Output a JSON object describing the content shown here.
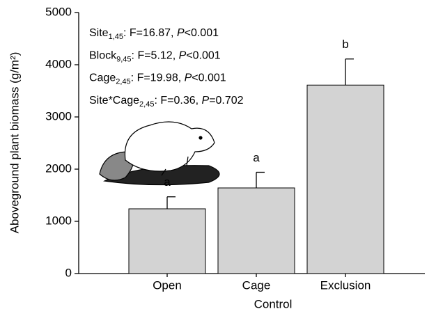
{
  "chart_data": {
    "type": "bar",
    "x_label": "Control",
    "y_label": "Aboveground plant biomass (g/m²)",
    "categories": [
      "Open",
      "Cage",
      "Exclusion"
    ],
    "values": [
      1240,
      1640,
      3610
    ],
    "errors": [
      230,
      300,
      500
    ],
    "letters": [
      "a",
      "a",
      "b"
    ],
    "color": "#d3d3d3",
    "ylim": [
      0,
      5000
    ],
    "yticks": [
      0,
      1000,
      2000,
      3000,
      4000,
      5000
    ],
    "annotations": [
      {
        "term": "Site",
        "df": "1,45",
        "text": ": F=16.87, ",
        "p": "P",
        "result": "<0.001"
      },
      {
        "term": "Block",
        "df": "9,45",
        "text": ": F=5.12, ",
        "p": "P",
        "result": "<0.001"
      },
      {
        "term": "Cage",
        "df": "2,45",
        "text": ": F=19.98, ",
        "p": "P",
        "result": "<0.001"
      },
      {
        "term": "Site*Cage",
        "df": "2,45",
        "text": ": F=0.36, ",
        "p": "P",
        "result": "=0.702"
      }
    ]
  }
}
